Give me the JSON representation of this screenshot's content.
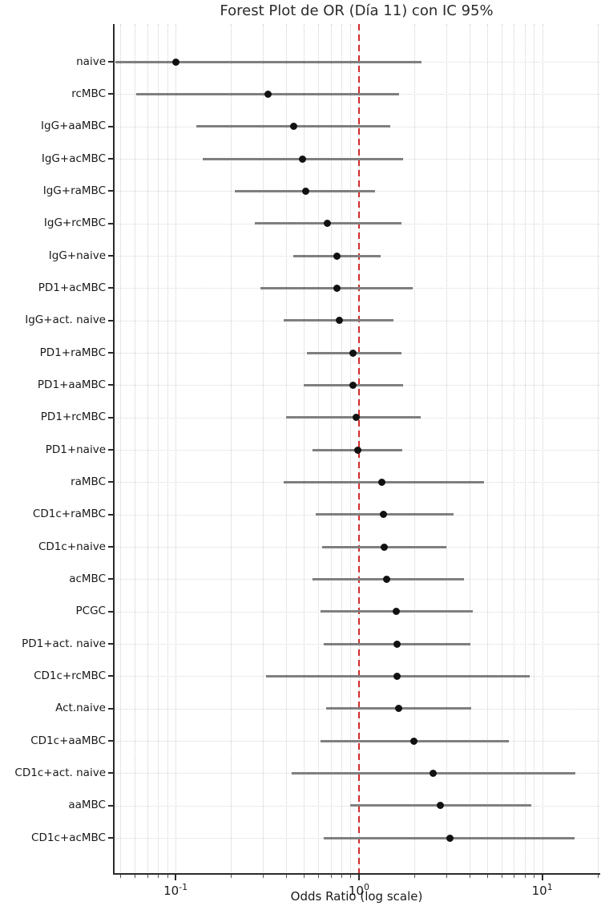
{
  "chart_data": {
    "type": "scatter",
    "variant": "forest-plot",
    "title": "Forest Plot de OR (Día 11) con IC 95%",
    "xlabel": "Odds Ratio (log scale)",
    "x_scale": "log",
    "xlim": [
      0.046,
      20.5
    ],
    "grid": "both",
    "legend": "none",
    "x_major_ticks": [
      {
        "value": 0.1,
        "label_base": "10",
        "label_exp": "-1"
      },
      {
        "value": 1,
        "label_base": "10",
        "label_exp": "0"
      },
      {
        "value": 10,
        "label_base": "10",
        "label_exp": "1"
      }
    ],
    "x_minor_ticks": [
      0.05,
      0.06,
      0.07,
      0.08,
      0.09,
      0.2,
      0.3,
      0.4,
      0.5,
      0.6,
      0.7,
      0.8,
      0.9,
      2,
      3,
      4,
      5,
      6,
      7,
      8,
      9,
      20
    ],
    "reference_line": {
      "value": 1.0,
      "style": "dashed",
      "color": "#d12b2b"
    },
    "rows": [
      {
        "label": "naive",
        "or": 0.1,
        "ci_low": 0.047,
        "ci_high": 2.2
      },
      {
        "label": "rcMBC",
        "or": 0.32,
        "ci_low": 0.061,
        "ci_high": 1.66
      },
      {
        "label": "IgG+aaMBC",
        "or": 0.44,
        "ci_low": 0.13,
        "ci_high": 1.49
      },
      {
        "label": "IgG+acMBC",
        "or": 0.49,
        "ci_low": 0.14,
        "ci_high": 1.75
      },
      {
        "label": "IgG+raMBC",
        "or": 0.51,
        "ci_low": 0.21,
        "ci_high": 1.23
      },
      {
        "label": "IgG+rcMBC",
        "or": 0.67,
        "ci_low": 0.27,
        "ci_high": 1.7
      },
      {
        "label": "IgG+naive",
        "or": 0.76,
        "ci_low": 0.44,
        "ci_high": 1.32
      },
      {
        "label": "PD1+acMBC",
        "or": 0.76,
        "ci_low": 0.29,
        "ci_high": 1.97
      },
      {
        "label": "IgG+act. naive",
        "or": 0.78,
        "ci_low": 0.39,
        "ci_high": 1.55
      },
      {
        "label": "PD1+raMBC",
        "or": 0.93,
        "ci_low": 0.52,
        "ci_high": 1.7
      },
      {
        "label": "PD1+aaMBC",
        "or": 0.93,
        "ci_low": 0.5,
        "ci_high": 1.74
      },
      {
        "label": "PD1+rcMBC",
        "or": 0.97,
        "ci_low": 0.4,
        "ci_high": 2.18
      },
      {
        "label": "PD1+naive",
        "or": 0.99,
        "ci_low": 0.56,
        "ci_high": 1.72
      },
      {
        "label": "raMBC",
        "or": 1.33,
        "ci_low": 0.39,
        "ci_high": 4.8
      },
      {
        "label": "CD1c+raMBC",
        "or": 1.36,
        "ci_low": 0.58,
        "ci_high": 3.3
      },
      {
        "label": "CD1c+naive",
        "or": 1.38,
        "ci_low": 0.63,
        "ci_high": 3.0
      },
      {
        "label": "acMBC",
        "or": 1.42,
        "ci_low": 0.56,
        "ci_high": 3.76
      },
      {
        "label": "PCGC",
        "or": 1.6,
        "ci_low": 0.62,
        "ci_high": 4.2
      },
      {
        "label": "PD1+act. naive",
        "or": 1.61,
        "ci_low": 0.64,
        "ci_high": 4.05
      },
      {
        "label": "CD1c+rcMBC",
        "or": 1.61,
        "ci_low": 0.31,
        "ci_high": 8.5
      },
      {
        "label": "Act.naive",
        "or": 1.64,
        "ci_low": 0.66,
        "ci_high": 4.1
      },
      {
        "label": "CD1c+aaMBC",
        "or": 2.0,
        "ci_low": 0.62,
        "ci_high": 6.6
      },
      {
        "label": "CD1c+act. naive",
        "or": 2.55,
        "ci_low": 0.43,
        "ci_high": 15.1
      },
      {
        "label": "aaMBC",
        "or": 2.78,
        "ci_low": 0.9,
        "ci_high": 8.7
      },
      {
        "label": "CD1c+acMBC",
        "or": 3.13,
        "ci_low": 0.64,
        "ci_high": 15.0
      }
    ]
  },
  "colors": {
    "ci_line": "#7f7f7f",
    "point": "#111111",
    "reference": "#d12b2b",
    "grid_minor": "#cfcfcf",
    "spine": "#2b2b2b",
    "text": "#1a1a1a"
  }
}
